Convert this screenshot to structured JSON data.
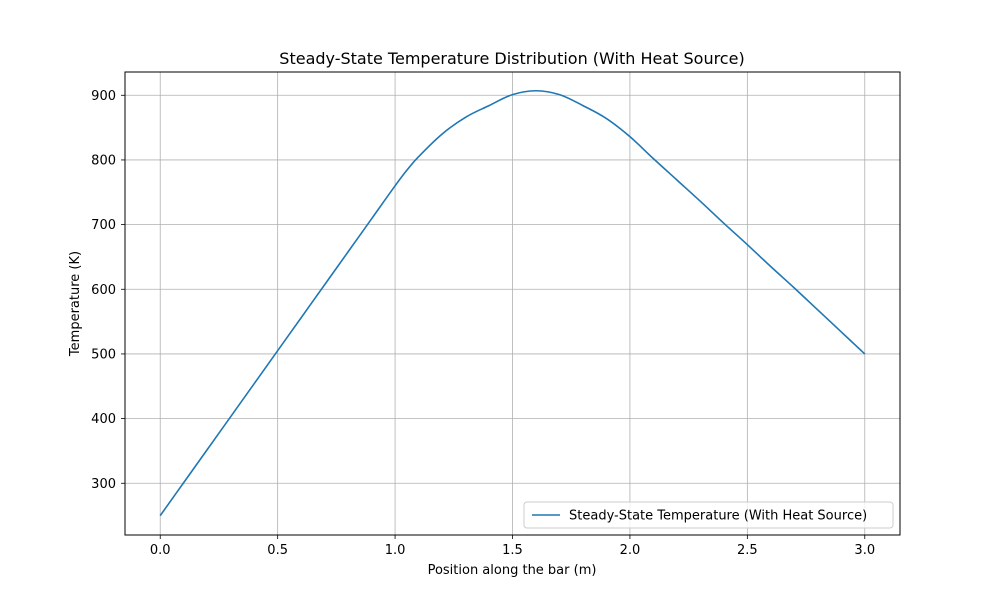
{
  "chart_data": {
    "type": "line",
    "title": "Steady-State Temperature Distribution (With Heat Source)",
    "xlabel": "Position along the bar (m)",
    "ylabel": "Temperature (K)",
    "xlim": [
      -0.15,
      3.15
    ],
    "ylim": [
      220,
      936
    ],
    "xticks": [
      0.0,
      0.5,
      1.0,
      1.5,
      2.0,
      2.5,
      3.0
    ],
    "xtick_labels": [
      "0.0",
      "0.5",
      "1.0",
      "1.5",
      "2.0",
      "2.5",
      "3.0"
    ],
    "yticks": [
      300,
      400,
      500,
      600,
      700,
      800,
      900
    ],
    "ytick_labels": [
      "300",
      "400",
      "500",
      "600",
      "700",
      "800",
      "900"
    ],
    "grid": true,
    "legend_position": "lower-right",
    "series": [
      {
        "name": "Steady-State Temperature (With Heat Source)",
        "color": "#1f77b4",
        "x": [
          0.0,
          0.1,
          0.2,
          0.3,
          0.4,
          0.5,
          0.6,
          0.7,
          0.8,
          0.9,
          1.0,
          1.05,
          1.1,
          1.2,
          1.3,
          1.4,
          1.5,
          1.6,
          1.7,
          1.8,
          1.9,
          2.0,
          2.1,
          2.2,
          2.3,
          2.4,
          2.5,
          2.6,
          2.7,
          2.8,
          2.9,
          3.0
        ],
        "y": [
          250,
          301,
          352,
          403,
          454,
          505,
          556,
          607,
          658,
          709,
          760,
          784,
          805,
          840,
          866,
          884,
          901,
          907,
          901,
          884,
          864,
          836,
          802,
          769,
          736,
          702,
          669,
          635,
          602,
          568,
          534,
          500
        ]
      }
    ]
  }
}
